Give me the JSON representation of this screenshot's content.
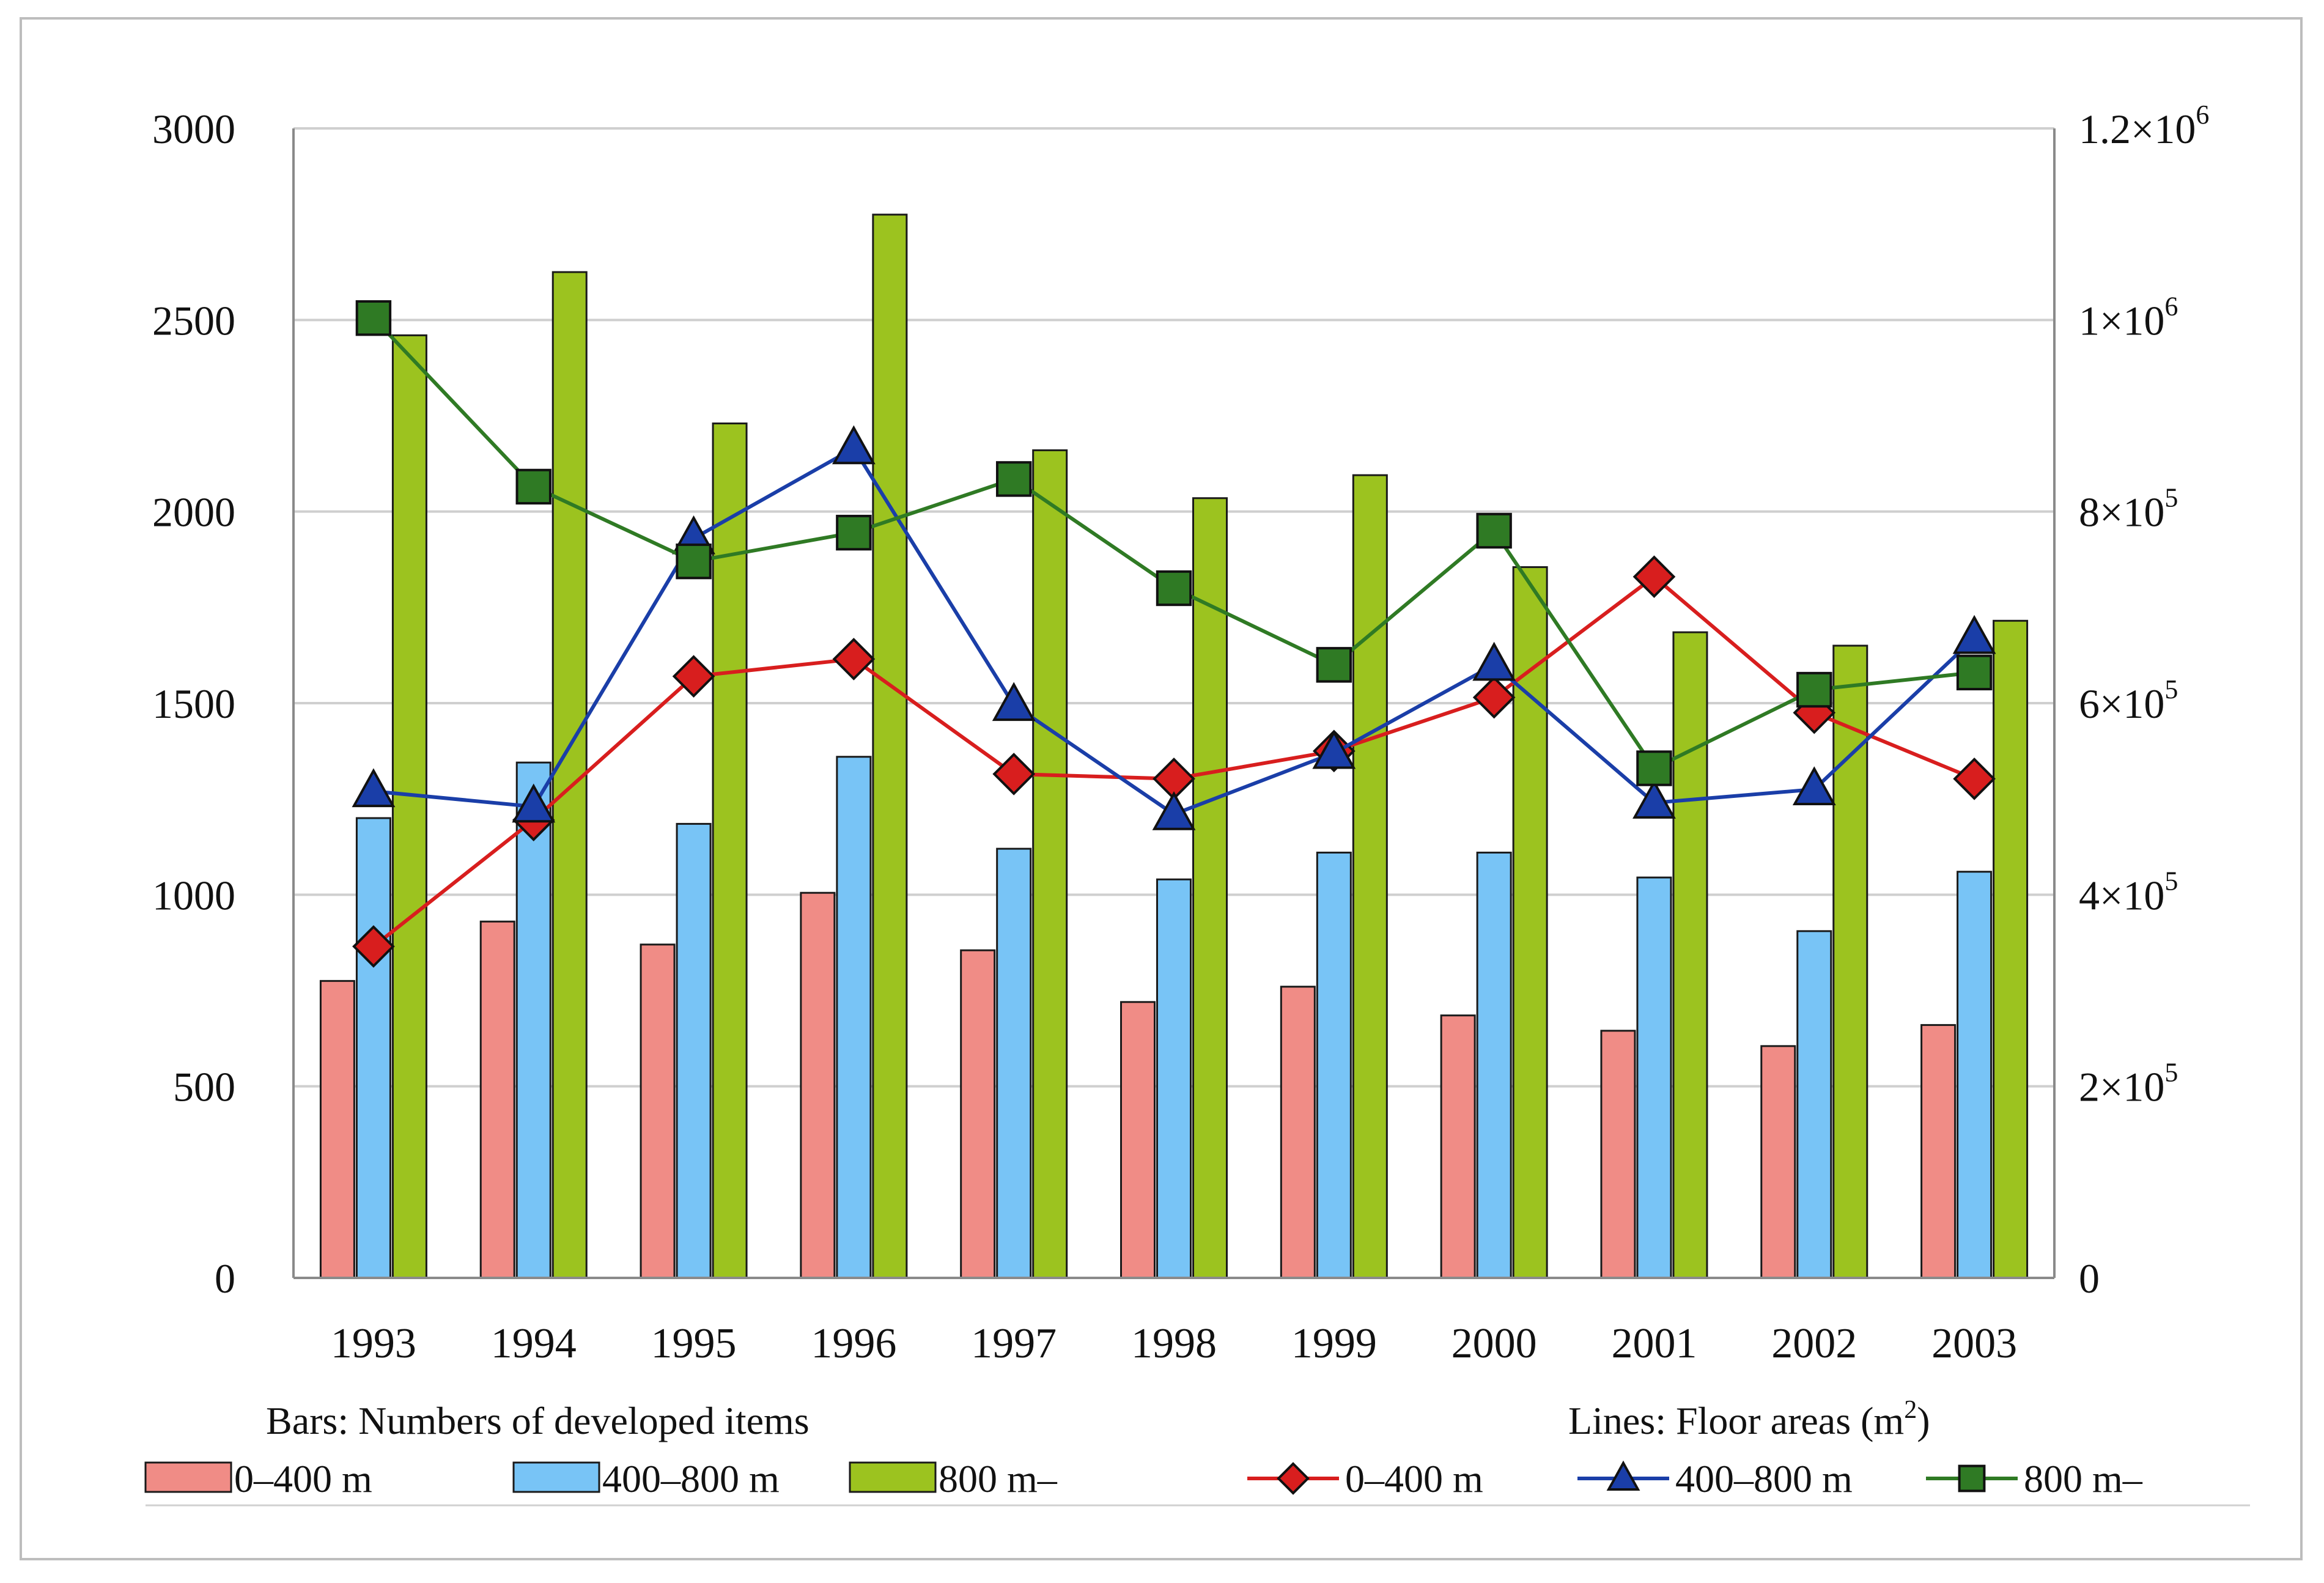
{
  "chart_data": {
    "type": "bar",
    "categories": [
      "1993",
      "1994",
      "1995",
      "1996",
      "1997",
      "1998",
      "1999",
      "2000",
      "2001",
      "2002",
      "2003"
    ],
    "bar_series": [
      {
        "name": "0–400 m",
        "color": "#f08c86",
        "values": [
          775,
          930,
          870,
          1005,
          855,
          720,
          760,
          685,
          645,
          605,
          660
        ]
      },
      {
        "name": "400–800 m",
        "color": "#78c4f6",
        "values": [
          1200,
          1345,
          1185,
          1360,
          1120,
          1040,
          1110,
          1110,
          1045,
          905,
          1060
        ]
      },
      {
        "name": "800 m–",
        "color": "#9cc31f",
        "values": [
          2460,
          2625,
          2230,
          2775,
          2160,
          2035,
          2095,
          1855,
          1685,
          1650,
          1715
        ]
      }
    ],
    "line_series": [
      {
        "name": "0–400 m",
        "color": "#d81e1e",
        "marker": "diamond",
        "values": [
          346000,
          478000,
          628000,
          646000,
          526000,
          521000,
          550000,
          606000,
          732000,
          590000,
          521000
        ]
      },
      {
        "name": "400–800 m",
        "color": "#1a3ea8",
        "marker": "triangle",
        "values": [
          508000,
          492000,
          772000,
          866000,
          598000,
          484000,
          548000,
          640000,
          496000,
          510000,
          668000
        ]
      },
      {
        "name": "800 m–",
        "color": "#2f7a24",
        "marker": "square",
        "values": [
          1002000,
          826000,
          748000,
          778000,
          834000,
          720000,
          640000,
          780000,
          532000,
          614000,
          632000
        ]
      }
    ],
    "y_left": {
      "range": [
        0,
        3000
      ],
      "ticks": [
        "0",
        "500",
        "1000",
        "1500",
        "2000",
        "2500",
        "3000"
      ],
      "tick_values": [
        0,
        500,
        1000,
        1500,
        2000,
        2500,
        3000
      ]
    },
    "y_right": {
      "range": [
        0,
        1200000
      ],
      "ticks": [
        {
          "value": 0,
          "base": "0",
          "exp": ""
        },
        {
          "value": 200000,
          "base": "2×10",
          "exp": "5"
        },
        {
          "value": 400000,
          "base": "4×10",
          "exp": "5"
        },
        {
          "value": 600000,
          "base": "6×10",
          "exp": "5"
        },
        {
          "value": 800000,
          "base": "8×10",
          "exp": "5"
        },
        {
          "value": 1000000,
          "base": "1×10",
          "exp": "6"
        },
        {
          "value": 1200000,
          "base": "1.2×10",
          "exp": "6"
        }
      ]
    },
    "grid": true,
    "legend": {
      "bars_title": "Bars: Numbers of developed items",
      "lines_title_prefix": "Lines: Floor areas (m",
      "lines_title_sup": "2",
      "lines_title_suffix": ")",
      "placement": "bottom"
    }
  }
}
